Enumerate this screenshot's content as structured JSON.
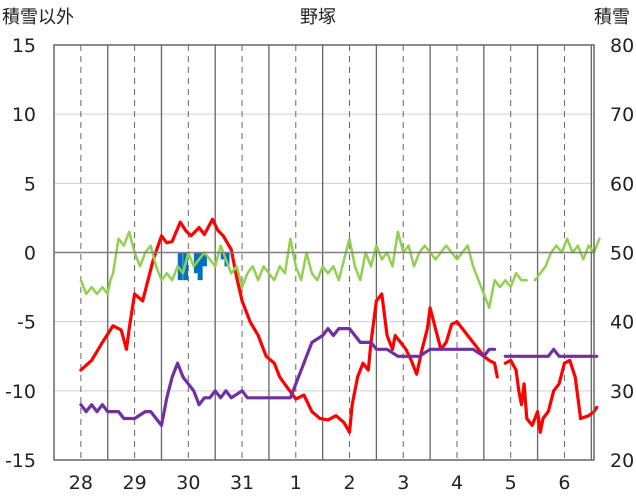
{
  "chart_data": {
    "type": "line",
    "title": "野塚",
    "left_axis_label": "積雪以外",
    "right_axis_label": "積雪",
    "ylim": [
      -15,
      15
    ],
    "y2lim": [
      20,
      80
    ],
    "yticks": [
      "15",
      "10",
      "5",
      "0",
      "-5",
      "-10",
      "-15"
    ],
    "y2ticks": [
      "80",
      "70",
      "60",
      "50",
      "40",
      "30",
      "20"
    ],
    "x_ticks": [
      "28",
      "29",
      "30",
      "31",
      "1",
      "2",
      "3",
      "4",
      "5",
      "6"
    ],
    "series": [
      {
        "color": "#ff0000",
        "points": [
          [
            0,
            -8.5
          ],
          [
            0.2,
            -7.8
          ],
          [
            0.4,
            -6.5
          ],
          [
            0.6,
            -5.3
          ],
          [
            0.75,
            -5.6
          ],
          [
            0.85,
            -7.0
          ],
          [
            0.9,
            -5.5
          ],
          [
            1.0,
            -3.0
          ],
          [
            1.15,
            -3.5
          ],
          [
            1.25,
            -2.0
          ],
          [
            1.35,
            -0.5
          ],
          [
            1.5,
            1.2
          ],
          [
            1.6,
            0.7
          ],
          [
            1.7,
            0.8
          ],
          [
            1.85,
            2.2
          ],
          [
            1.95,
            1.6
          ],
          [
            2.05,
            1.2
          ],
          [
            2.2,
            1.8
          ],
          [
            2.3,
            1.3
          ],
          [
            2.45,
            2.4
          ],
          [
            2.55,
            1.6
          ],
          [
            2.65,
            1.2
          ],
          [
            2.8,
            0.2
          ],
          [
            2.9,
            -1.8
          ],
          [
            3.0,
            -3.5
          ],
          [
            3.15,
            -5.0
          ],
          [
            3.3,
            -6.0
          ],
          [
            3.45,
            -7.5
          ],
          [
            3.6,
            -8.0
          ],
          [
            3.7,
            -9.0
          ],
          [
            3.85,
            -9.8
          ],
          [
            4.0,
            -10.6
          ],
          [
            4.15,
            -10.3
          ],
          [
            4.3,
            -11.5
          ],
          [
            4.45,
            -12.0
          ],
          [
            4.6,
            -12.1
          ],
          [
            4.75,
            -11.8
          ],
          [
            4.9,
            -12.3
          ],
          [
            5.0,
            -13.0
          ],
          [
            5.05,
            -11.0
          ],
          [
            5.15,
            -9.0
          ],
          [
            5.25,
            -8.0
          ],
          [
            5.35,
            -8.5
          ],
          [
            5.4,
            -6.5
          ],
          [
            5.5,
            -3.5
          ],
          [
            5.6,
            -3.0
          ],
          [
            5.7,
            -6.0
          ],
          [
            5.8,
            -7.0
          ],
          [
            5.85,
            -6.0
          ],
          [
            5.95,
            -6.5
          ],
          [
            6.05,
            -7.0
          ],
          [
            6.15,
            -7.8
          ],
          [
            6.25,
            -8.8
          ],
          [
            6.35,
            -7.0
          ],
          [
            6.45,
            -5.5
          ],
          [
            6.5,
            -4.0
          ],
          [
            6.6,
            -5.5
          ],
          [
            6.7,
            -7.0
          ],
          [
            6.8,
            -6.5
          ],
          [
            6.9,
            -5.2
          ],
          [
            7.0,
            -5.0
          ],
          [
            7.1,
            -5.5
          ],
          [
            7.2,
            -6.0
          ],
          [
            7.3,
            -6.5
          ],
          [
            7.4,
            -7.0
          ],
          [
            7.5,
            -7.5
          ],
          [
            7.6,
            -7.8
          ],
          [
            7.7,
            -8.0
          ],
          [
            7.75,
            -9.0
          ]
        ]
      },
      {
        "color": "#ff0000",
        "points": [
          [
            7.9,
            -8.0
          ],
          [
            8.0,
            -7.8
          ],
          [
            8.1,
            -8.5
          ],
          [
            8.15,
            -10.0
          ],
          [
            8.2,
            -11.0
          ],
          [
            8.25,
            -9.5
          ],
          [
            8.3,
            -12.0
          ],
          [
            8.4,
            -12.5
          ],
          [
            8.5,
            -11.5
          ],
          [
            8.55,
            -13.0
          ],
          [
            8.6,
            -12.0
          ],
          [
            8.7,
            -11.5
          ],
          [
            8.8,
            -10.0
          ],
          [
            8.9,
            -9.5
          ],
          [
            9.0,
            -8.0
          ],
          [
            9.1,
            -7.8
          ],
          [
            9.2,
            -9.0
          ],
          [
            9.3,
            -12.0
          ],
          [
            9.45,
            -11.8
          ],
          [
            9.55,
            -11.5
          ],
          [
            9.6,
            -11.2
          ]
        ]
      },
      {
        "color": "#92d050",
        "points": [
          [
            0,
            -2.0
          ],
          [
            0.1,
            -3.0
          ],
          [
            0.2,
            -2.5
          ],
          [
            0.3,
            -3.0
          ],
          [
            0.4,
            -2.5
          ],
          [
            0.5,
            -3.0
          ],
          [
            0.55,
            -2.0
          ],
          [
            0.6,
            -1.5
          ],
          [
            0.7,
            1.0
          ],
          [
            0.8,
            0.5
          ],
          [
            0.9,
            1.5
          ],
          [
            1.0,
            0.0
          ],
          [
            1.1,
            -1.0
          ],
          [
            1.2,
            0.0
          ],
          [
            1.3,
            0.5
          ],
          [
            1.4,
            -1.0
          ],
          [
            1.5,
            -2.0
          ],
          [
            1.6,
            -1.5
          ],
          [
            1.7,
            -2.0
          ],
          [
            1.8,
            -1.0
          ],
          [
            1.9,
            -1.5
          ],
          [
            2.0,
            0.0
          ],
          [
            2.1,
            -1.0
          ],
          [
            2.2,
            -0.5
          ],
          [
            2.3,
            0.0
          ],
          [
            2.4,
            -0.5
          ],
          [
            2.5,
            -1.0
          ],
          [
            2.6,
            0.5
          ],
          [
            2.7,
            -0.5
          ],
          [
            2.8,
            -1.5
          ],
          [
            2.9,
            -1.0
          ],
          [
            3.0,
            -2.5
          ],
          [
            3.1,
            -1.5
          ],
          [
            3.2,
            -1.0
          ],
          [
            3.3,
            -2.0
          ],
          [
            3.4,
            -1.0
          ],
          [
            3.5,
            -1.5
          ],
          [
            3.6,
            -2.0
          ],
          [
            3.7,
            -1.0
          ],
          [
            3.8,
            -1.5
          ],
          [
            3.9,
            1.0
          ],
          [
            4.0,
            -1.0
          ],
          [
            4.1,
            -2.0
          ],
          [
            4.2,
            0.0
          ],
          [
            4.3,
            -1.5
          ],
          [
            4.4,
            -2.0
          ],
          [
            4.5,
            -1.0
          ],
          [
            4.6,
            -1.5
          ],
          [
            4.7,
            -1.0
          ],
          [
            4.8,
            -2.0
          ],
          [
            4.9,
            -0.5
          ],
          [
            5.0,
            1.0
          ],
          [
            5.1,
            -1.0
          ],
          [
            5.2,
            -2.0
          ],
          [
            5.3,
            0.0
          ],
          [
            5.4,
            -1.0
          ],
          [
            5.5,
            0.5
          ],
          [
            5.6,
            -0.5
          ],
          [
            5.7,
            0.0
          ],
          [
            5.8,
            -1.0
          ],
          [
            5.9,
            1.5
          ],
          [
            6.0,
            0.0
          ],
          [
            6.1,
            0.5
          ],
          [
            6.2,
            -1.0
          ],
          [
            6.3,
            0.0
          ],
          [
            6.4,
            0.5
          ],
          [
            6.5,
            0.0
          ],
          [
            6.6,
            -0.5
          ],
          [
            6.7,
            0.0
          ],
          [
            6.8,
            0.5
          ],
          [
            6.9,
            0.0
          ],
          [
            7.0,
            -0.5
          ],
          [
            7.1,
            0.0
          ],
          [
            7.2,
            0.5
          ],
          [
            7.3,
            -1.0
          ],
          [
            7.4,
            -2.0
          ],
          [
            7.5,
            -3.0
          ],
          [
            7.6,
            -4.0
          ],
          [
            7.7,
            -2.0
          ],
          [
            7.8,
            -2.5
          ],
          [
            7.9,
            -2.0
          ],
          [
            8.0,
            -2.5
          ],
          [
            8.1,
            -1.5
          ],
          [
            8.2,
            -2.0
          ],
          [
            8.3,
            -2.0
          ]
        ]
      },
      {
        "color": "#92d050",
        "points": [
          [
            8.45,
            -2.0
          ],
          [
            8.55,
            -1.5
          ],
          [
            8.65,
            -1.0
          ],
          [
            8.75,
            0.0
          ],
          [
            8.85,
            0.5
          ],
          [
            8.95,
            0.0
          ],
          [
            9.05,
            1.0
          ],
          [
            9.15,
            0.0
          ],
          [
            9.25,
            0.5
          ],
          [
            9.35,
            -0.5
          ],
          [
            9.45,
            0.5
          ],
          [
            9.55,
            0.0
          ],
          [
            9.65,
            1.0
          ]
        ]
      },
      {
        "color": "#7030a0",
        "points": [
          [
            0,
            -11.0
          ],
          [
            0.1,
            -11.5
          ],
          [
            0.2,
            -11.0
          ],
          [
            0.3,
            -11.5
          ],
          [
            0.4,
            -11.0
          ],
          [
            0.5,
            -11.5
          ],
          [
            0.6,
            -11.5
          ],
          [
            0.7,
            -11.5
          ],
          [
            0.8,
            -12.0
          ],
          [
            1.0,
            -12.0
          ],
          [
            1.2,
            -11.5
          ],
          [
            1.3,
            -11.5
          ],
          [
            1.4,
            -12.0
          ],
          [
            1.5,
            -12.5
          ],
          [
            1.6,
            -10.5
          ],
          [
            1.7,
            -9.0
          ],
          [
            1.8,
            -8.0
          ],
          [
            1.9,
            -9.0
          ],
          [
            2.0,
            -9.5
          ],
          [
            2.1,
            -10.0
          ],
          [
            2.2,
            -11.0
          ],
          [
            2.3,
            -10.5
          ],
          [
            2.4,
            -10.5
          ],
          [
            2.5,
            -10.0
          ],
          [
            2.6,
            -10.5
          ],
          [
            2.7,
            -10.0
          ],
          [
            2.8,
            -10.5
          ],
          [
            3.0,
            -10.0
          ],
          [
            3.1,
            -10.5
          ],
          [
            3.5,
            -10.5
          ],
          [
            3.7,
            -10.5
          ],
          [
            3.9,
            -10.5
          ],
          [
            4.0,
            -9.5
          ],
          [
            4.1,
            -8.5
          ],
          [
            4.2,
            -7.5
          ],
          [
            4.3,
            -6.5
          ],
          [
            4.5,
            -6.0
          ],
          [
            4.6,
            -5.5
          ],
          [
            4.7,
            -6.0
          ],
          [
            4.8,
            -5.5
          ],
          [
            5.0,
            -5.5
          ],
          [
            5.1,
            -6.0
          ],
          [
            5.2,
            -6.5
          ],
          [
            5.4,
            -6.5
          ],
          [
            5.5,
            -7.0
          ],
          [
            5.7,
            -7.0
          ],
          [
            5.9,
            -7.5
          ],
          [
            6.1,
            -7.5
          ],
          [
            6.3,
            -7.5
          ],
          [
            6.5,
            -7.0
          ],
          [
            6.7,
            -7.0
          ],
          [
            7.0,
            -7.0
          ],
          [
            7.3,
            -7.0
          ],
          [
            7.5,
            -7.5
          ],
          [
            7.6,
            -7.0
          ],
          [
            7.7,
            -7.0
          ]
        ]
      },
      {
        "color": "#7030a0",
        "points": [
          [
            7.9,
            -7.5
          ],
          [
            8.3,
            -7.5
          ],
          [
            8.7,
            -7.5
          ],
          [
            8.8,
            -7.0
          ],
          [
            8.9,
            -7.5
          ],
          [
            9.3,
            -7.5
          ],
          [
            9.6,
            -7.5
          ]
        ]
      }
    ],
    "bars": {
      "color": "#0070c0",
      "items": [
        {
          "x": 1.85,
          "y": -2.0
        },
        {
          "x": 1.95,
          "y": -2.0
        },
        {
          "x": 2.15,
          "y": -1.5
        },
        {
          "x": 2.22,
          "y": -2.0
        },
        {
          "x": 2.3,
          "y": -1.0
        },
        {
          "x": 2.65,
          "y": -0.5
        },
        {
          "x": 2.72,
          "y": -1.0
        }
      ]
    }
  }
}
